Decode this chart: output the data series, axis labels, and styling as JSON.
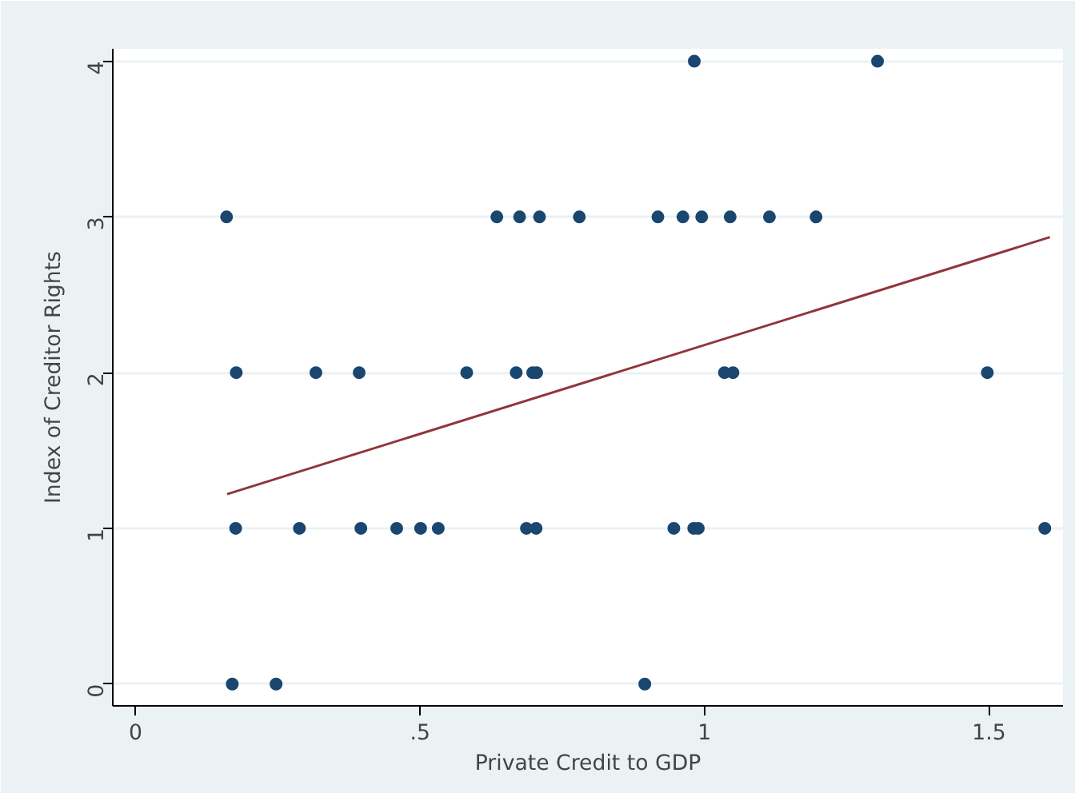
{
  "chart_data": {
    "type": "scatter",
    "xlabel": "Private Credit to GDP",
    "ylabel": "Index of Creditor Rights",
    "xlim": [
      -0.04,
      1.63
    ],
    "ylim": [
      -0.14,
      4.08
    ],
    "xticks": [
      {
        "value": 0,
        "label": "0"
      },
      {
        "value": 0.5,
        "label": ".5"
      },
      {
        "value": 1,
        "label": "1"
      },
      {
        "value": 1.5,
        "label": "1.5"
      }
    ],
    "yticks": [
      0,
      1,
      2,
      3,
      4
    ],
    "grid": "y",
    "series": [
      {
        "marker": "circle",
        "color": "#1a476f",
        "x": [
          0.16,
          0.635,
          0.675,
          0.71,
          0.78,
          0.918,
          0.962,
          0.995,
          1.045,
          1.114,
          1.196,
          0.982,
          1.304,
          0.177,
          0.317,
          0.393,
          0.582,
          0.669,
          0.698,
          0.705,
          1.035,
          1.05,
          1.497,
          0.176,
          0.288,
          0.396,
          0.459,
          0.501,
          0.532,
          0.687,
          0.704,
          0.946,
          0.981,
          0.989,
          1.598,
          0.17,
          0.247,
          0.895
        ],
        "values": [
          3,
          3,
          3,
          3,
          3,
          3,
          3,
          3,
          3,
          3,
          3,
          4,
          4,
          2,
          2,
          2,
          2,
          2,
          2,
          2,
          2,
          2,
          2,
          1,
          1,
          1,
          1,
          1,
          1,
          1,
          1,
          1,
          1,
          1,
          1,
          0,
          0,
          0
        ]
      },
      {
        "type": "line",
        "color": "#90353b",
        "x": [
          0.161,
          1.607
        ],
        "values": [
          1.22,
          2.87
        ]
      }
    ]
  }
}
